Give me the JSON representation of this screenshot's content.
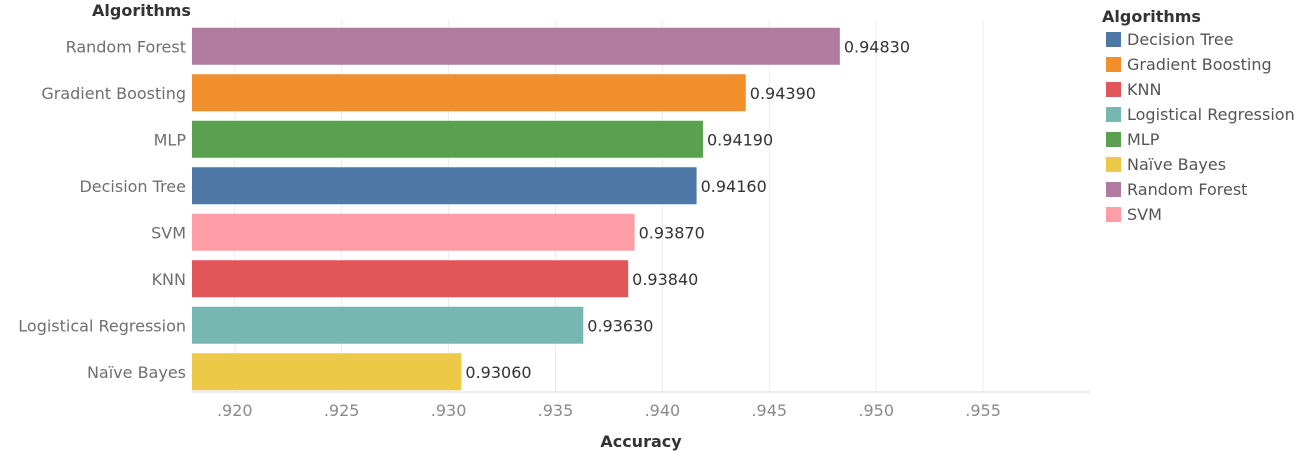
{
  "chart_data": {
    "type": "bar",
    "orientation": "horizontal",
    "row_header": "Algorithms",
    "xlabel": "Accuracy",
    "xlim": [
      0.918,
      0.96
    ],
    "xticks": [
      0.92,
      0.925,
      0.93,
      0.935,
      0.94,
      0.945,
      0.95,
      0.955
    ],
    "xtick_labels": [
      ".920",
      ".925",
      ".930",
      ".935",
      ".940",
      ".945",
      ".950",
      ".955"
    ],
    "grid": "vertical",
    "categories": [
      "Random Forest",
      "Gradient Boosting",
      "MLP",
      "Decision Tree",
      "SVM",
      "KNN",
      "Logistical Regression",
      "Naïve Bayes"
    ],
    "values": [
      0.9483,
      0.9439,
      0.9419,
      0.9416,
      0.9387,
      0.9384,
      0.9363,
      0.9306
    ],
    "value_labels": [
      "0.94830",
      "0.94390",
      "0.94190",
      "0.94160",
      "0.93870",
      "0.93840",
      "0.93630",
      "0.93060"
    ],
    "legend": {
      "title": "Algorithms",
      "position": "right",
      "items": [
        {
          "label": "Decision Tree",
          "color": "#4e79a7"
        },
        {
          "label": "Gradient Boosting",
          "color": "#f28e2b"
        },
        {
          "label": "KNN",
          "color": "#e15759"
        },
        {
          "label": "Logistical Regression",
          "color": "#76b7b2"
        },
        {
          "label": "MLP",
          "color": "#59a14f"
        },
        {
          "label": "Naïve Bayes",
          "color": "#edc948"
        },
        {
          "label": "Random Forest",
          "color": "#b07aa1"
        },
        {
          "label": "SVM",
          "color": "#ff9da7"
        }
      ]
    }
  }
}
